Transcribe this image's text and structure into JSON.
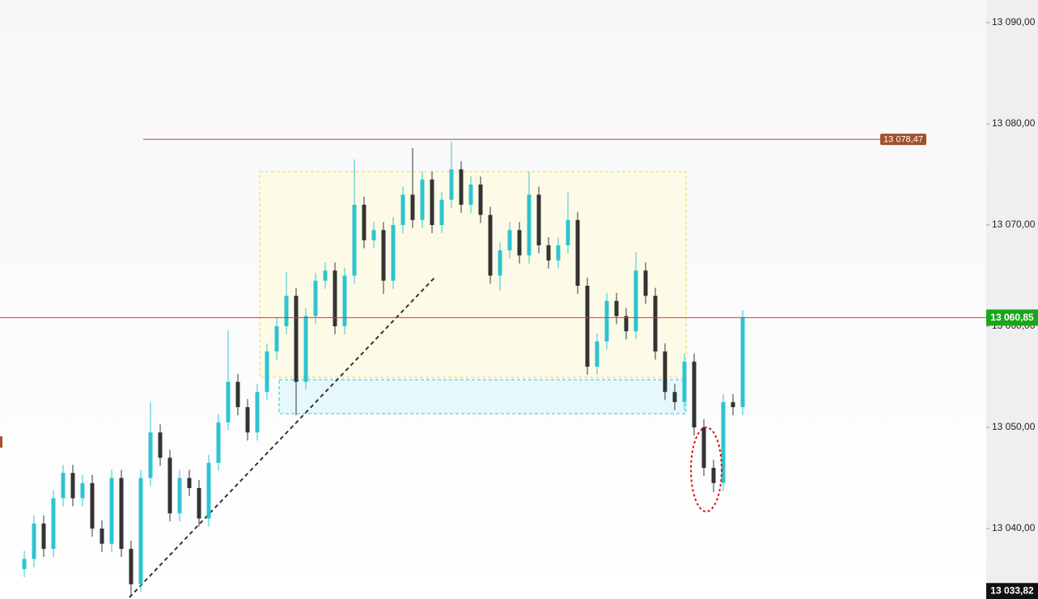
{
  "chart_data": {
    "type": "candlestick",
    "up_color": "#2ec4d0",
    "down_color": "#333333",
    "ylim": [
      13033.04,
      13092.24
    ],
    "yticks": [
      {
        "value": 13040,
        "label": "13 040,00"
      },
      {
        "value": 13050,
        "label": "13 050,00"
      },
      {
        "value": 13060,
        "label": "13 060,00"
      },
      {
        "value": 13070,
        "label": "13 070,00"
      },
      {
        "value": 13080,
        "label": "13 080,00"
      },
      {
        "value": 13090,
        "label": "13 090,00"
      }
    ],
    "level_line": {
      "value": 13078.47,
      "label": "13 078,47",
      "color": "#a0522d"
    },
    "price_line": {
      "value": 13060.85,
      "label": "13 060,85",
      "color": "#e03030",
      "label_color": "#1aa51a"
    },
    "low_marker": {
      "value": 13033.82,
      "label": "13 033,82"
    },
    "open": [
      13036.0,
      13037.0,
      13040.5,
      13038.0,
      13043.0,
      13045.5,
      13043.0,
      13044.5,
      13040.0,
      13038.5,
      13045.0,
      13038.0,
      13034.5,
      13045.0,
      13049.5,
      13047.0,
      13041.5,
      13045.0,
      13044.0,
      13041.0,
      13046.5,
      13050.5,
      13054.5,
      13052.0,
      13049.5,
      13053.5,
      13057.5,
      13060.0,
      13063.0,
      13054.5,
      13061.0,
      13064.5,
      13065.5,
      13060.0,
      13065.0,
      13072.0,
      13068.5,
      13069.5,
      13064.5,
      13070.0,
      13073.0,
      13070.5,
      13074.5,
      13070.0,
      13072.5,
      13075.5,
      13072.0,
      13074.0,
      13071.0,
      13065.0,
      13067.5,
      13069.5,
      13067.0,
      13073.0,
      13068.0,
      13066.5,
      13068.0,
      13070.5,
      13064.0,
      13056.0,
      13058.5,
      13062.5,
      13061.0,
      13059.5,
      13065.5,
      13063.0,
      13057.5,
      13053.5,
      13052.5,
      13056.5,
      13050.0,
      13046.0,
      13044.5,
      13052.5,
      13052.0
    ],
    "high": [
      13037.8,
      13041.3,
      13041.3,
      13043.8,
      13046.3,
      13046.3,
      13045.3,
      13045.3,
      13040.8,
      13045.8,
      13045.8,
      13038.8,
      13045.8,
      13052.5,
      13050.3,
      13047.8,
      13045.8,
      13045.8,
      13044.8,
      13047.3,
      13051.3,
      13059.6,
      13055.3,
      13052.8,
      13054.3,
      13058.3,
      13060.8,
      13065.4,
      13063.8,
      13061.8,
      13065.3,
      13066.3,
      13066.3,
      13065.8,
      13076.5,
      13072.8,
      13070.3,
      13070.3,
      13070.8,
      13073.8,
      13077.6,
      13075.3,
      13075.3,
      13073.3,
      13078.2,
      13076.3,
      13074.8,
      13074.8,
      13071.8,
      13068.3,
      13070.3,
      13070.3,
      13075.3,
      13073.8,
      13068.8,
      13068.8,
      13073.2,
      13071.3,
      13064.8,
      13059.3,
      13063.3,
      13063.3,
      13061.8,
      13067.3,
      13066.3,
      13063.8,
      13058.3,
      13054.3,
      13057.3,
      13057.3,
      13050.8,
      13046.8,
      13053.3,
      13053.3,
      13061.6
    ],
    "low": [
      13035.2,
      13036.2,
      13037.2,
      13037.2,
      13042.2,
      13042.2,
      13042.2,
      13039.2,
      13037.7,
      13037.7,
      13037.2,
      13033.4,
      13033.7,
      13044.2,
      13046.2,
      13040.7,
      13040.7,
      13043.2,
      13040.2,
      13040.2,
      13045.7,
      13049.7,
      13051.2,
      13048.7,
      13048.7,
      13052.7,
      13056.7,
      13059.2,
      13051.2,
      13053.7,
      13060.2,
      13063.7,
      13059.2,
      13059.2,
      13064.2,
      13067.7,
      13067.7,
      13063.2,
      13063.7,
      13069.2,
      13069.7,
      13069.7,
      13069.2,
      13069.2,
      13071.7,
      13071.2,
      13071.2,
      13070.2,
      13064.2,
      13063.5,
      13066.7,
      13066.2,
      13066.2,
      13067.2,
      13065.7,
      13065.7,
      13067.2,
      13063.2,
      13055.2,
      13055.2,
      13057.7,
      13060.2,
      13058.7,
      13058.7,
      13062.2,
      13056.7,
      13052.7,
      13051.7,
      13051.7,
      13049.2,
      13045.2,
      13043.6,
      13043.7,
      13051.2,
      13051.2
    ],
    "close": [
      13037.0,
      13040.5,
      13038.0,
      13043.0,
      13045.5,
      13043.0,
      13044.5,
      13040.0,
      13038.5,
      13045.0,
      13038.0,
      13034.5,
      13045.0,
      13049.5,
      13047.0,
      13041.5,
      13045.0,
      13044.0,
      13041.0,
      13046.5,
      13050.5,
      13054.5,
      13052.0,
      13049.5,
      13053.5,
      13057.5,
      13060.0,
      13063.0,
      13054.5,
      13061.0,
      13064.5,
      13065.5,
      13060.0,
      13065.0,
      13072.0,
      13068.5,
      13069.5,
      13064.5,
      13070.0,
      13073.0,
      13070.5,
      13074.5,
      13070.0,
      13072.5,
      13075.5,
      13072.0,
      13074.0,
      13071.0,
      13065.0,
      13067.5,
      13069.5,
      13067.0,
      13073.0,
      13068.0,
      13066.5,
      13068.0,
      13070.5,
      13064.0,
      13056.0,
      13058.5,
      13062.5,
      13061.0,
      13059.5,
      13065.5,
      13063.0,
      13057.5,
      13053.5,
      13052.5,
      13056.5,
      13050.0,
      13046.0,
      13044.5,
      13052.5,
      13052.0,
      13060.85
    ]
  }
}
